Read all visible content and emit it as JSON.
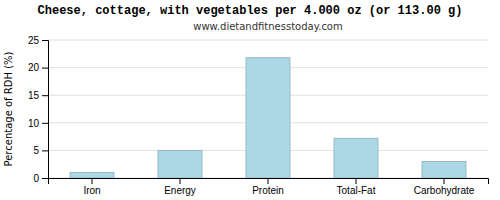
{
  "chart_data": {
    "type": "bar",
    "title": "Cheese, cottage, with vegetables per 4.000 oz (or 113.00 g)",
    "subtitle": "www.dietandfitnesstoday.com",
    "categories": [
      "Iron",
      "Energy",
      "Protein",
      "Total-Fat",
      "Carbohydrate"
    ],
    "values": [
      1.0,
      5.0,
      21.8,
      7.2,
      3.0
    ],
    "color": "#add8e6",
    "ylabel": "Percentage of RDH (%)",
    "ylim": [
      0,
      25
    ],
    "yticks": [
      0,
      5,
      10,
      15,
      20,
      25
    ],
    "grid": true
  }
}
